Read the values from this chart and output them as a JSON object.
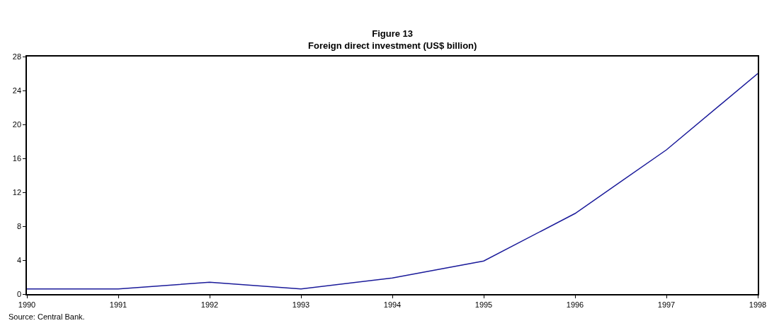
{
  "chart_data": {
    "type": "line",
    "title": "Figure 13",
    "subtitle": "Foreign direct investment (US$ billion)",
    "x": [
      1990,
      1991,
      1992,
      1993,
      1994,
      1995,
      1996,
      1997,
      1998
    ],
    "series": [
      {
        "color": "#1a1a9a",
        "values": [
          0.6,
          0.6,
          1.4,
          0.6,
          1.9,
          3.9,
          9.5,
          17.0,
          26.0
        ]
      }
    ],
    "xlim": [
      1990,
      1998
    ],
    "xticks": [
      1990,
      1991,
      1992,
      1993,
      1994,
      1995,
      1996,
      1997,
      1998
    ],
    "ylim": [
      0,
      28
    ],
    "yticks": [
      0,
      4,
      8,
      12,
      16,
      20,
      24,
      28
    ],
    "grid": false,
    "legend": false,
    "marker": "none",
    "line_style": "solid",
    "annotations": [
      "Source: Central Bank."
    ]
  }
}
